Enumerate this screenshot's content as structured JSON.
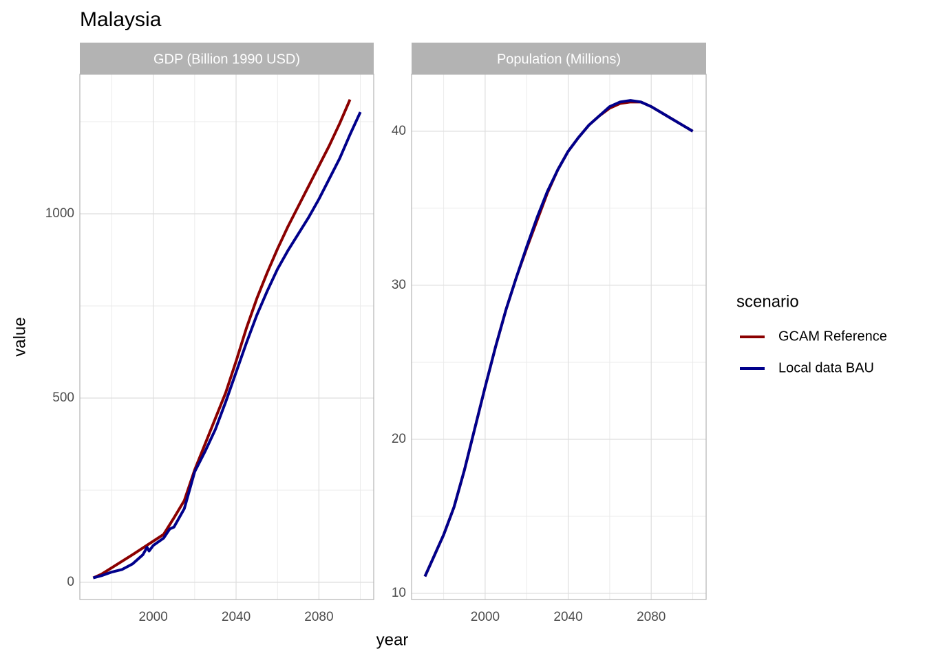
{
  "title": "Malaysia",
  "x_label": "year",
  "y_label": "value",
  "legend_title": "scenario",
  "chart_data": [
    {
      "type": "line",
      "title": "GDP (Billion 1990 USD)",
      "xlim": [
        1964.55,
        2106.45
      ],
      "xticks": [
        2000,
        2040,
        2080
      ],
      "ylim": [
        -46.6,
        1378.7
      ],
      "yticks": [
        0,
        500,
        1000
      ],
      "grid": true,
      "series": [
        {
          "name": "GCAM Reference",
          "color": "#8b0000",
          "x": [
            1971,
            1975,
            1990,
            2005,
            2010,
            2015,
            2020,
            2025,
            2030,
            2035,
            2040,
            2045,
            2050,
            2055,
            2060,
            2065,
            2070,
            2075,
            2080,
            2085,
            2090,
            2095
          ],
          "values": [
            12,
            22,
            75,
            130,
            175,
            222,
            305,
            375,
            445,
            515,
            600,
            690,
            770,
            840,
            905,
            965,
            1020,
            1075,
            1130,
            1185,
            1245,
            1310
          ]
        },
        {
          "name": "Local data BAU",
          "color": "#00008b",
          "x": [
            1971,
            1975,
            1980,
            1985,
            1990,
            1995,
            1997,
            1998,
            2000,
            2005,
            2008,
            2010,
            2015,
            2020,
            2025,
            2030,
            2035,
            2040,
            2045,
            2050,
            2055,
            2060,
            2065,
            2070,
            2075,
            2080,
            2085,
            2090,
            2095,
            2100
          ],
          "values": [
            12,
            18,
            28,
            35,
            50,
            75,
            95,
            85,
            100,
            120,
            145,
            150,
            200,
            300,
            355,
            415,
            490,
            570,
            650,
            725,
            790,
            850,
            900,
            945,
            990,
            1040,
            1095,
            1150,
            1215,
            1276
          ]
        }
      ]
    },
    {
      "type": "line",
      "title": "Population (Millions)",
      "xlim": [
        1964.55,
        2106.45
      ],
      "xticks": [
        2000,
        2040,
        2080
      ],
      "ylim": [
        9.6,
        43.7
      ],
      "yticks": [
        10,
        20,
        30,
        40
      ],
      "grid": true,
      "series": [
        {
          "name": "GCAM Reference",
          "color": "#8b0000",
          "x": [
            1971,
            1975,
            1980,
            1985,
            1990,
            1995,
            2000,
            2005,
            2010,
            2015,
            2020,
            2025,
            2030,
            2035,
            2040,
            2045,
            2050,
            2055,
            2060,
            2065,
            2070,
            2075,
            2080,
            2085,
            2090,
            2095,
            2100
          ],
          "values": [
            11.1,
            12.3,
            13.8,
            15.6,
            18.0,
            20.7,
            23.4,
            26.0,
            28.4,
            30.5,
            32.4,
            34.2,
            36.0,
            37.5,
            38.7,
            39.6,
            40.4,
            41.0,
            41.5,
            41.8,
            41.9,
            41.9,
            41.6,
            41.2,
            40.8,
            40.4,
            40.0
          ]
        },
        {
          "name": "Local data BAU",
          "color": "#00008b",
          "x": [
            1971,
            1975,
            1980,
            1985,
            1990,
            1995,
            2000,
            2005,
            2010,
            2015,
            2020,
            2025,
            2030,
            2035,
            2040,
            2045,
            2050,
            2055,
            2060,
            2065,
            2070,
            2075,
            2080,
            2085,
            2090,
            2095,
            2100
          ],
          "values": [
            11.1,
            12.3,
            13.8,
            15.6,
            18.0,
            20.7,
            23.4,
            26.0,
            28.4,
            30.5,
            32.5,
            34.4,
            36.1,
            37.5,
            38.7,
            39.6,
            40.4,
            41.0,
            41.6,
            41.9,
            42.0,
            41.9,
            41.6,
            41.2,
            40.8,
            40.4,
            40.0
          ]
        }
      ]
    }
  ]
}
